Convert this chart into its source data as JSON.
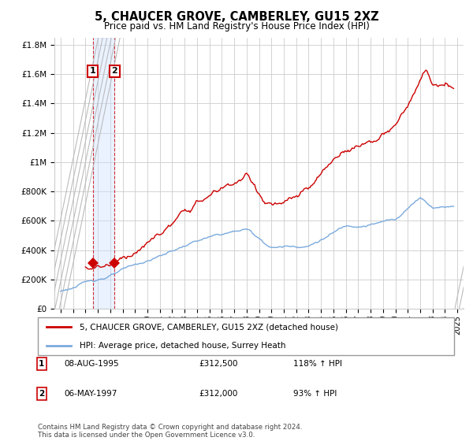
{
  "title": "5, CHAUCER GROVE, CAMBERLEY, GU15 2XZ",
  "subtitle": "Price paid vs. HM Land Registry's House Price Index (HPI)",
  "y_tick_values": [
    0,
    200000,
    400000,
    600000,
    800000,
    1000000,
    1200000,
    1400000,
    1600000,
    1800000
  ],
  "ylim": [
    0,
    1850000
  ],
  "xlim_start": 1992.5,
  "xlim_end": 2025.5,
  "x_ticks": [
    1993,
    1994,
    1995,
    1996,
    1997,
    1998,
    1999,
    2000,
    2001,
    2002,
    2003,
    2004,
    2005,
    2006,
    2007,
    2008,
    2009,
    2010,
    2011,
    2012,
    2013,
    2014,
    2015,
    2016,
    2017,
    2018,
    2019,
    2020,
    2021,
    2022,
    2023,
    2024,
    2025
  ],
  "grid_color": "#cccccc",
  "sale1_date": 1995.6,
  "sale1_price": 312500,
  "sale2_date": 1997.35,
  "sale2_price": 312000,
  "house_color": "#cc0000",
  "hpi_color": "#7aaadd",
  "legend_house": "5, CHAUCER GROVE, CAMBERLEY, GU15 2XZ (detached house)",
  "legend_hpi": "HPI: Average price, detached house, Surrey Heath",
  "table_row1_num": "1",
  "table_row1_date": "08-AUG-1995",
  "table_row1_price": "£312,500",
  "table_row1_hpi": "118% ↑ HPI",
  "table_row2_num": "2",
  "table_row2_date": "06-MAY-1997",
  "table_row2_price": "£312,000",
  "table_row2_hpi": "93% ↑ HPI",
  "footnote": "Contains HM Land Registry data © Crown copyright and database right 2024.\nThis data is licensed under the Open Government Licence v3.0.",
  "hatch_color": "#d8d8d8",
  "shade_color": "#cce0ff",
  "shade_alpha": 0.4
}
